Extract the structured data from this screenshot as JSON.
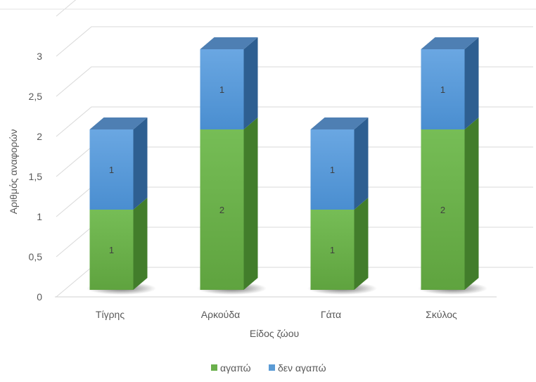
{
  "chart_data": {
    "type": "bar",
    "stacked": true,
    "three_d": true,
    "categories": [
      "Τίγρης",
      "Αρκούδα",
      "Γάτα",
      "Σκύλος"
    ],
    "series": [
      {
        "name": "αγαπώ",
        "values": [
          1,
          2,
          1,
          2
        ],
        "color": "#6ab04c"
      },
      {
        "name": "δεν αγαπώ",
        "values": [
          1,
          1,
          1,
          1
        ],
        "color": "#5b9bd5"
      }
    ],
    "xlabel": "Είδος ζώου",
    "ylabel": "Αριθμός αναφορών",
    "ylim": [
      0,
      3.5
    ],
    "yticks": [
      "0",
      "0,5",
      "1",
      "1,5",
      "2",
      "2,5",
      "3"
    ],
    "grid": true,
    "legend_position": "bottom"
  }
}
